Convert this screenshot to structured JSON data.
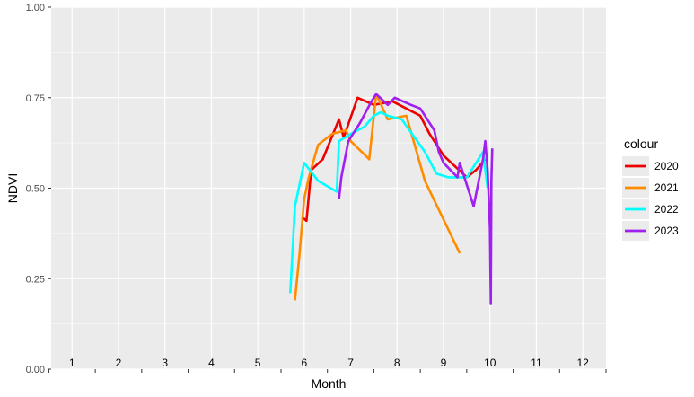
{
  "chart_data": {
    "type": "line",
    "xlabel": "Month",
    "ylabel": "NDVI",
    "xlim": [
      0.55,
      12.5
    ],
    "ylim": [
      0,
      1
    ],
    "grid": true,
    "legend_position": "right",
    "legend_title": "colour",
    "background": "#ebebeb",
    "grid_color": "#ffffff",
    "y_ticks": [
      "0.00",
      "0.25",
      "0.50",
      "0.75",
      "1.00"
    ],
    "y_tick_values": [
      0,
      0.25,
      0.5,
      0.75,
      1.0
    ],
    "x_tick_labels": [
      "1",
      "2",
      "3",
      "4",
      "5",
      "6",
      "7",
      "8",
      "9",
      "10",
      "11",
      "12"
    ],
    "series": [
      {
        "name": "2020",
        "color": "#ee0000",
        "points": [
          [
            5.95,
            0.42
          ],
          [
            6.05,
            0.41
          ],
          [
            6.15,
            0.55
          ],
          [
            6.4,
            0.58
          ],
          [
            6.75,
            0.69
          ],
          [
            6.85,
            0.64
          ],
          [
            7.15,
            0.75
          ],
          [
            7.5,
            0.73
          ],
          [
            7.9,
            0.74
          ],
          [
            8.2,
            0.72
          ],
          [
            8.5,
            0.7
          ],
          [
            8.7,
            0.65
          ],
          [
            9.0,
            0.59
          ],
          [
            9.5,
            0.53
          ],
          [
            9.7,
            0.55
          ],
          [
            9.9,
            0.58
          ]
        ]
      },
      {
        "name": "2021",
        "color": "#ff8c00",
        "points": [
          [
            5.8,
            0.19
          ],
          [
            5.9,
            0.32
          ],
          [
            6.0,
            0.47
          ],
          [
            6.1,
            0.53
          ],
          [
            6.3,
            0.62
          ],
          [
            6.6,
            0.65
          ],
          [
            6.9,
            0.66
          ],
          [
            7.0,
            0.63
          ],
          [
            7.4,
            0.58
          ],
          [
            7.55,
            0.76
          ],
          [
            7.8,
            0.69
          ],
          [
            8.2,
            0.7
          ],
          [
            8.6,
            0.52
          ],
          [
            9.35,
            0.32
          ]
        ]
      },
      {
        "name": "2022",
        "color": "#00ffff",
        "points": [
          [
            5.7,
            0.21
          ],
          [
            5.8,
            0.45
          ],
          [
            6.0,
            0.57
          ],
          [
            6.3,
            0.52
          ],
          [
            6.7,
            0.49
          ],
          [
            6.75,
            0.63
          ],
          [
            7.0,
            0.65
          ],
          [
            7.3,
            0.67
          ],
          [
            7.5,
            0.7
          ],
          [
            7.65,
            0.71
          ],
          [
            7.8,
            0.7
          ],
          [
            8.1,
            0.69
          ],
          [
            8.6,
            0.6
          ],
          [
            8.85,
            0.54
          ],
          [
            9.1,
            0.53
          ],
          [
            9.5,
            0.53
          ],
          [
            9.75,
            0.58
          ],
          [
            9.85,
            0.6
          ],
          [
            9.95,
            0.5
          ]
        ]
      },
      {
        "name": "2023",
        "color": "#a020f0",
        "points": [
          [
            6.75,
            0.47
          ],
          [
            6.8,
            0.53
          ],
          [
            6.95,
            0.63
          ],
          [
            7.2,
            0.68
          ],
          [
            7.45,
            0.74
          ],
          [
            7.55,
            0.76
          ],
          [
            7.8,
            0.73
          ],
          [
            7.95,
            0.75
          ],
          [
            8.3,
            0.73
          ],
          [
            8.5,
            0.72
          ],
          [
            8.65,
            0.69
          ],
          [
            8.8,
            0.66
          ],
          [
            8.9,
            0.6
          ],
          [
            9.0,
            0.57
          ],
          [
            9.15,
            0.55
          ],
          [
            9.3,
            0.53
          ],
          [
            9.35,
            0.57
          ],
          [
            9.65,
            0.45
          ],
          [
            9.85,
            0.58
          ],
          [
            9.9,
            0.63
          ],
          [
            9.95,
            0.55
          ],
          [
            10.0,
            0.39
          ],
          [
            10.02,
            0.18
          ],
          [
            10.03,
            0.52
          ],
          [
            10.05,
            0.61
          ]
        ]
      }
    ]
  }
}
